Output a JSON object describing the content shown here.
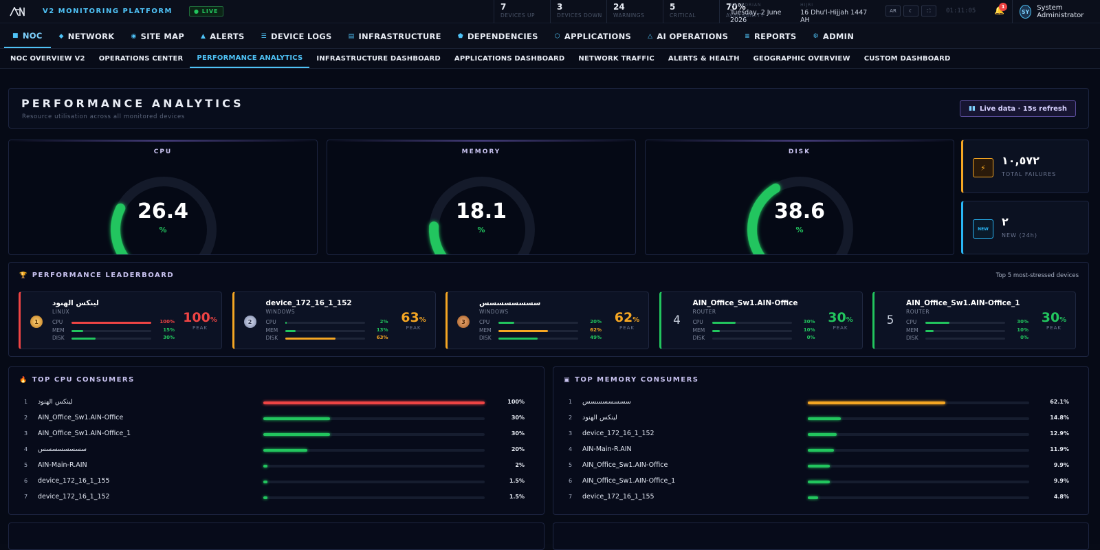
{
  "app": {
    "brand": "V2 MONITORING PLATFORM",
    "live": "● LIVE"
  },
  "stats": [
    {
      "value": "7",
      "label": "Devices up"
    },
    {
      "value": "3",
      "label": "Devices down"
    },
    {
      "value": "24",
      "label": "Warnings"
    },
    {
      "value": "5",
      "label": "Critical"
    },
    {
      "value": "70%",
      "label": "Availability"
    }
  ],
  "dates": {
    "gregorian_label": "GREGORIAN",
    "gregorian": "Tuesday, 2 June 2026",
    "hijri_label": "HIJRI",
    "hijri": "16 Dhu'l-Hijjah 1447 AH"
  },
  "toolbar": {
    "lang": "AR",
    "theme_icon": "☾",
    "fullscreen_icon": "⛶",
    "clock": "01:11:05",
    "notifications": "1"
  },
  "user": {
    "initials": "SY",
    "name": "System Administrator"
  },
  "main_nav": [
    {
      "icon": "■",
      "label": "NOC",
      "active": true
    },
    {
      "icon": "◆",
      "label": "NETWORK"
    },
    {
      "icon": "◉",
      "label": "SITE MAP"
    },
    {
      "icon": "▲",
      "label": "ALERTS"
    },
    {
      "icon": "☰",
      "label": "DEVICE LOGS"
    },
    {
      "icon": "▤",
      "label": "INFRASTRUCTURE"
    },
    {
      "icon": "⬟",
      "label": "DEPENDENCIES"
    },
    {
      "icon": "⬡",
      "label": "APPLICATIONS"
    },
    {
      "icon": "△",
      "label": "AI OPERATIONS"
    },
    {
      "icon": "≡",
      "label": "REPORTS"
    },
    {
      "icon": "⚙",
      "label": "ADMIN"
    }
  ],
  "sub_nav": [
    {
      "label": "NOC OVERVIEW V2"
    },
    {
      "label": "OPERATIONS CENTER"
    },
    {
      "label": "PERFORMANCE ANALYTICS",
      "active": true
    },
    {
      "label": "INFRASTRUCTURE DASHBOARD"
    },
    {
      "label": "APPLICATIONS DASHBOARD"
    },
    {
      "label": "NETWORK TRAFFIC"
    },
    {
      "label": "ALERTS & HEALTH"
    },
    {
      "label": "GEOGRAPHIC OVERVIEW"
    },
    {
      "label": "CUSTOM DASHBOARD"
    }
  ],
  "hero": {
    "title": "PERFORMANCE ANALYTICS",
    "subtitle": "Resource utilisation across all monitored devices",
    "button": "Live data · 15s refresh",
    "button_icon": "▮▮"
  },
  "gauges": [
    {
      "label": "CPU",
      "value": "26.4",
      "percent": 26.4,
      "unit": "%"
    },
    {
      "label": "MEMORY",
      "value": "18.1",
      "percent": 18.1,
      "unit": "%"
    },
    {
      "label": "DISK",
      "value": "38.6",
      "percent": 38.6,
      "unit": "%"
    }
  ],
  "kpis": {
    "failures": {
      "icon": "⚡",
      "value": "١٠,٥٧٢",
      "label": "TOTAL FAILURES"
    },
    "new": {
      "icon": "NEW",
      "value": "٢",
      "label": "NEW (24h)"
    }
  },
  "leaderboard": {
    "title": "PERFORMANCE LEADERBOARD",
    "note": "Top 5 most-stressed devices",
    "peak_label": "PEAK",
    "items": [
      {
        "rank": "1",
        "name": "لينكس الهنود",
        "type": "LINUX",
        "accent": "red",
        "peak": "100",
        "peak_color": "#ef4444",
        "metrics": [
          {
            "k": "CPU",
            "v": 100,
            "t": "100%",
            "c": "#ef4444"
          },
          {
            "k": "MEM",
            "v": 15,
            "t": "15%",
            "c": "#22c55e"
          },
          {
            "k": "DISK",
            "v": 30,
            "t": "30%",
            "c": "#22c55e"
          }
        ]
      },
      {
        "rank": "2",
        "name": "device_172_16_1_152",
        "type": "WINDOWS",
        "accent": "orange",
        "peak": "63",
        "peak_color": "#f5a623",
        "metrics": [
          {
            "k": "CPU",
            "v": 2,
            "t": "2%",
            "c": "#22c55e"
          },
          {
            "k": "MEM",
            "v": 13,
            "t": "13%",
            "c": "#22c55e"
          },
          {
            "k": "DISK",
            "v": 63,
            "t": "63%",
            "c": "#f5a623"
          }
        ]
      },
      {
        "rank": "3",
        "name": "سسسسسسسس",
        "type": "WINDOWS",
        "accent": "orange",
        "peak": "62",
        "peak_color": "#f5a623",
        "metrics": [
          {
            "k": "CPU",
            "v": 20,
            "t": "20%",
            "c": "#22c55e"
          },
          {
            "k": "MEM",
            "v": 62,
            "t": "62%",
            "c": "#f5a623"
          },
          {
            "k": "DISK",
            "v": 49,
            "t": "49%",
            "c": "#22c55e"
          }
        ]
      },
      {
        "rank": "4",
        "name": "AIN_Office_Sw1.AIN-Office",
        "type": "ROUTER",
        "accent": "green",
        "peak": "30",
        "peak_color": "#22c55e",
        "metrics": [
          {
            "k": "CPU",
            "v": 30,
            "t": "30%",
            "c": "#22c55e"
          },
          {
            "k": "MEM",
            "v": 10,
            "t": "10%",
            "c": "#22c55e"
          },
          {
            "k": "DISK",
            "v": 0,
            "t": "0%",
            "c": "#22c55e"
          }
        ]
      },
      {
        "rank": "5",
        "name": "AIN_Office_Sw1.AIN-Office_1",
        "type": "ROUTER",
        "accent": "green",
        "peak": "30",
        "peak_color": "#22c55e",
        "metrics": [
          {
            "k": "CPU",
            "v": 30,
            "t": "30%",
            "c": "#22c55e"
          },
          {
            "k": "MEM",
            "v": 10,
            "t": "10%",
            "c": "#22c55e"
          },
          {
            "k": "DISK",
            "v": 0,
            "t": "0%",
            "c": "#22c55e"
          }
        ]
      }
    ]
  },
  "cpu_consumers": {
    "title": "TOP CPU CONSUMERS",
    "icon": "🔥",
    "rows": [
      {
        "i": "1",
        "name": "لينكس الهنود",
        "v": 100,
        "t": "100%",
        "c": "#ef4444"
      },
      {
        "i": "2",
        "name": "AIN_Office_Sw1.AIN-Office",
        "v": 30,
        "t": "30%",
        "c": "#22c55e"
      },
      {
        "i": "3",
        "name": "AIN_Office_Sw1.AIN-Office_1",
        "v": 30,
        "t": "30%",
        "c": "#22c55e"
      },
      {
        "i": "4",
        "name": "سسسسسسسس",
        "v": 20,
        "t": "20%",
        "c": "#22c55e"
      },
      {
        "i": "5",
        "name": "AIN-Main-R.AIN",
        "v": 2,
        "t": "2%",
        "c": "#22c55e"
      },
      {
        "i": "6",
        "name": "device_172_16_1_155",
        "v": 1.5,
        "t": "1.5%",
        "c": "#22c55e"
      },
      {
        "i": "7",
        "name": "device_172_16_1_152",
        "v": 1.5,
        "t": "1.5%",
        "c": "#22c55e"
      }
    ]
  },
  "mem_consumers": {
    "title": "TOP MEMORY CONSUMERS",
    "icon": "▣",
    "rows": [
      {
        "i": "1",
        "name": "سسسسسسسس",
        "v": 62.1,
        "t": "62.1%",
        "c": "#f5a623"
      },
      {
        "i": "2",
        "name": "لينكس الهنود",
        "v": 14.8,
        "t": "14.8%",
        "c": "#22c55e"
      },
      {
        "i": "3",
        "name": "device_172_16_1_152",
        "v": 12.9,
        "t": "12.9%",
        "c": "#22c55e"
      },
      {
        "i": "4",
        "name": "AIN-Main-R.AIN",
        "v": 11.9,
        "t": "11.9%",
        "c": "#22c55e"
      },
      {
        "i": "5",
        "name": "AIN_Office_Sw1.AIN-Office",
        "v": 9.9,
        "t": "9.9%",
        "c": "#22c55e"
      },
      {
        "i": "6",
        "name": "AIN_Office_Sw1.AIN-Office_1",
        "v": 9.9,
        "t": "9.9%",
        "c": "#22c55e"
      },
      {
        "i": "7",
        "name": "device_172_16_1_155",
        "v": 4.8,
        "t": "4.8%",
        "c": "#22c55e"
      }
    ]
  },
  "colors": {
    "accent": "#4fc3f7",
    "ok": "#22c55e",
    "warn": "#f5a623",
    "crit": "#ef4444"
  }
}
